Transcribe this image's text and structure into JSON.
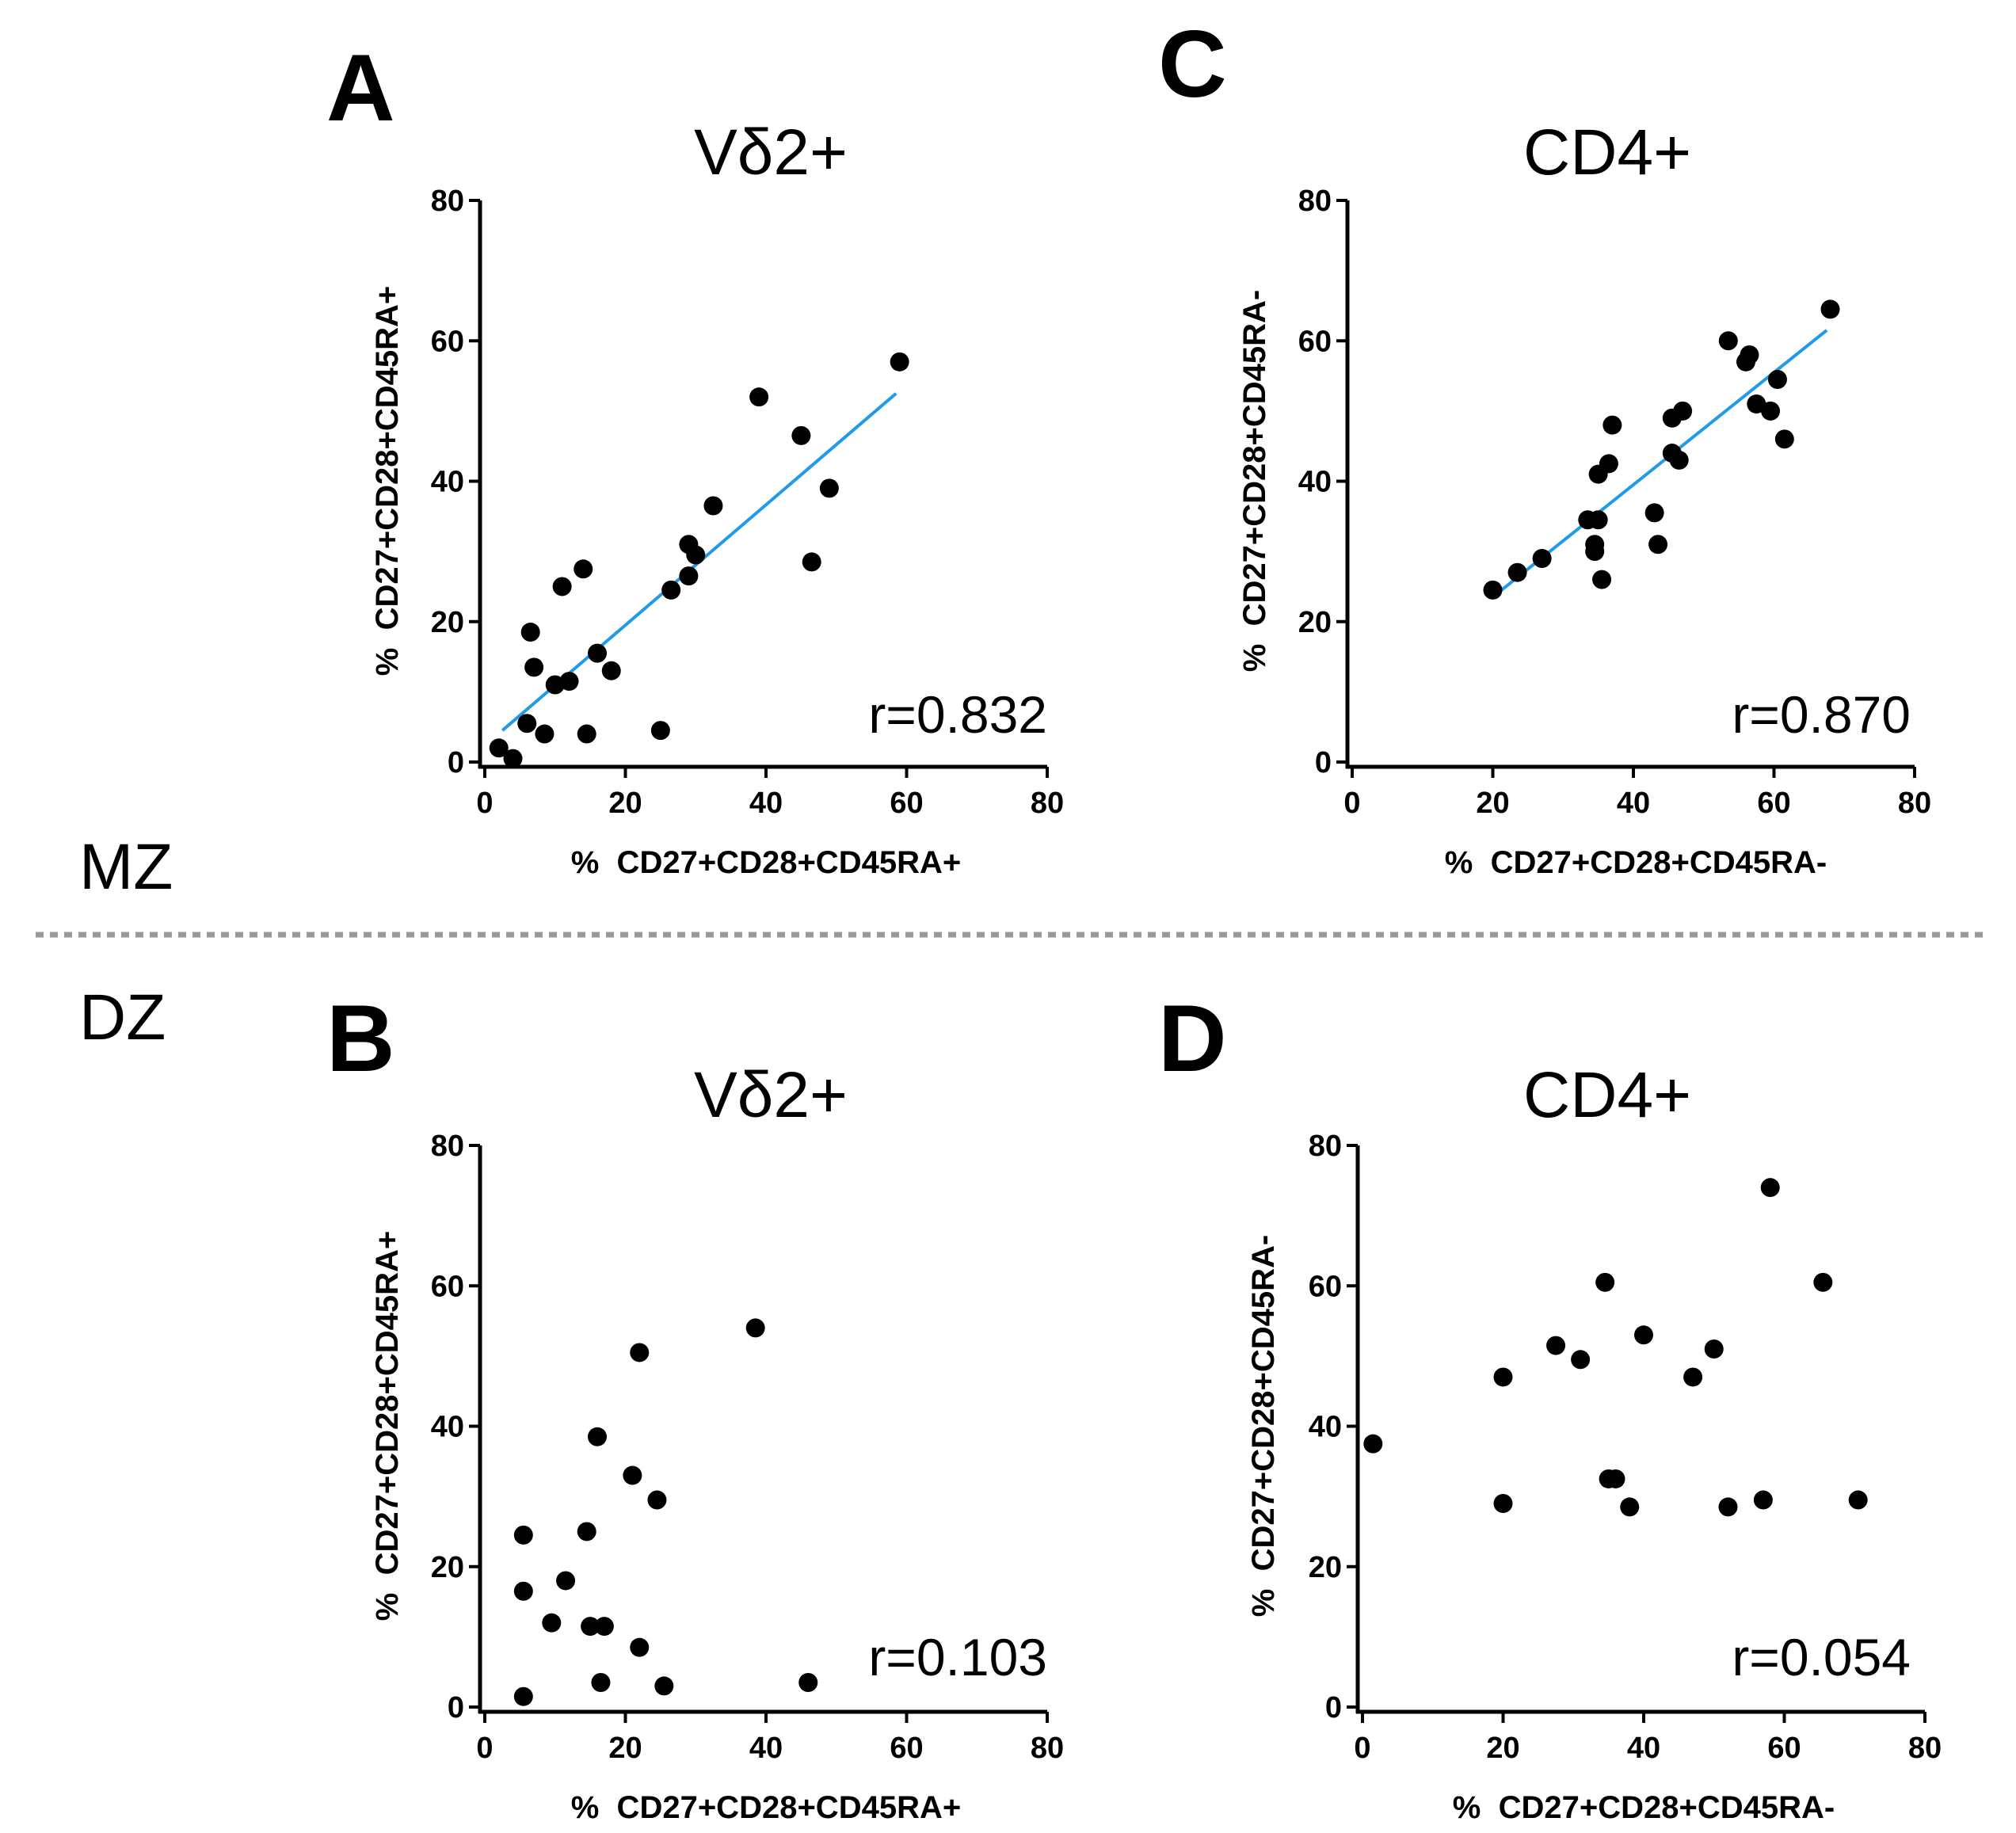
{
  "group_labels": {
    "top": "MZ",
    "bottom": "DZ"
  },
  "colors": {
    "fit_line": "#1f9be8",
    "points": "#000000",
    "divider": "#9a9a9a"
  },
  "panels": [
    {
      "id": "A",
      "letter": "A",
      "title": "Vδ2+",
      "r_text": "r=0.832",
      "xlabel": "%  CD27+CD28+CD45RA+",
      "ylabel": "%  CD27+CD28+CD45RA+",
      "xticks": [
        "0",
        "20",
        "40",
        "60",
        "80"
      ],
      "yticks": [
        "0",
        "20",
        "40",
        "60",
        "80"
      ]
    },
    {
      "id": "C",
      "letter": "C",
      "title": "CD4+",
      "r_text": "r=0.870",
      "xlabel": "%  CD27+CD28+CD45RA-",
      "ylabel": "%  CD27+CD28+CD45RA-",
      "xticks": [
        "0",
        "20",
        "40",
        "60",
        "80"
      ],
      "yticks": [
        "0",
        "20",
        "40",
        "60",
        "80"
      ]
    },
    {
      "id": "B",
      "letter": "B",
      "title": "Vδ2+",
      "r_text": "r=0.103",
      "xlabel": "%  CD27+CD28+CD45RA+",
      "ylabel": "%  CD27+CD28+CD45RA+",
      "xticks": [
        "0",
        "20",
        "40",
        "60",
        "80"
      ],
      "yticks": [
        "0",
        "20",
        "40",
        "60",
        "80"
      ]
    },
    {
      "id": "D",
      "letter": "D",
      "title": "CD4+",
      "r_text": "r=0.054",
      "xlabel": "%  CD27+CD28+CD45RA-",
      "ylabel": "%  CD27+CD28+CD45RA-",
      "xticks": [
        "0",
        "20",
        "40",
        "60",
        "80"
      ],
      "yticks": [
        "0",
        "20",
        "40",
        "60",
        "80"
      ]
    }
  ],
  "chart_data": [
    {
      "panel": "A",
      "group": "MZ",
      "type": "scatter",
      "title": "Vδ2+",
      "xlabel": "% CD27+CD28+CD45RA+",
      "ylabel": "% CD27+CD28+CD45RA+",
      "xlim": [
        0,
        80
      ],
      "ylim": [
        0,
        80
      ],
      "r": 0.832,
      "points": [
        [
          2,
          2
        ],
        [
          4,
          0.5
        ],
        [
          6,
          5.5
        ],
        [
          6.5,
          18.5
        ],
        [
          7,
          13.5
        ],
        [
          8.5,
          4
        ],
        [
          10,
          11
        ],
        [
          11,
          25
        ],
        [
          12,
          11.5
        ],
        [
          14,
          27.5
        ],
        [
          14.5,
          4
        ],
        [
          16,
          15.5
        ],
        [
          18,
          13
        ],
        [
          25,
          4.5
        ],
        [
          26.5,
          24.5
        ],
        [
          29,
          31
        ],
        [
          29,
          26.5
        ],
        [
          30,
          29.5
        ],
        [
          32.5,
          36.5
        ],
        [
          39,
          52
        ],
        [
          45,
          46.5
        ],
        [
          46.5,
          28.5
        ],
        [
          49,
          39
        ],
        [
          59,
          57
        ]
      ],
      "fit_line": {
        "x": [
          2.5,
          58.5
        ],
        "y": [
          4.5,
          52.5
        ]
      }
    },
    {
      "panel": "C",
      "group": "MZ",
      "type": "scatter",
      "title": "CD4+",
      "xlabel": "% CD27+CD28+CD45RA-",
      "ylabel": "% CD27+CD28+CD45RA-",
      "xlim": [
        0,
        80
      ],
      "ylim": [
        0,
        80
      ],
      "r": 0.87,
      "points": [
        [
          20,
          24.5
        ],
        [
          23.5,
          27
        ],
        [
          27,
          29
        ],
        [
          33.5,
          34.5
        ],
        [
          34.5,
          31
        ],
        [
          34.5,
          30
        ],
        [
          35,
          34.5
        ],
        [
          35,
          41
        ],
        [
          35.5,
          26
        ],
        [
          36.5,
          42.5
        ],
        [
          37,
          48
        ],
        [
          43,
          35.5
        ],
        [
          43.5,
          31
        ],
        [
          45.5,
          44
        ],
        [
          45.5,
          49
        ],
        [
          46.5,
          43
        ],
        [
          47,
          50
        ],
        [
          53.5,
          60
        ],
        [
          56,
          57
        ],
        [
          56.5,
          58
        ],
        [
          57.5,
          51
        ],
        [
          59.5,
          50
        ],
        [
          60.5,
          54.5
        ],
        [
          61.5,
          46
        ],
        [
          68,
          64.5
        ]
      ],
      "fit_line": {
        "x": [
          20,
          67.5
        ],
        "y": [
          23.5,
          61.5
        ]
      }
    },
    {
      "panel": "B",
      "group": "DZ",
      "type": "scatter",
      "title": "Vδ2+",
      "xlabel": "% CD27+CD28+CD45RA+",
      "ylabel": "% CD27+CD28+CD45RA+",
      "xlim": [
        0,
        80
      ],
      "ylim": [
        0,
        80
      ],
      "r": 0.103,
      "points": [
        [
          5.5,
          24.5
        ],
        [
          5.5,
          16.5
        ],
        [
          5.5,
          1.5
        ],
        [
          9.5,
          12
        ],
        [
          11.5,
          18
        ],
        [
          14.5,
          25
        ],
        [
          15,
          11.5
        ],
        [
          16,
          38.5
        ],
        [
          16.5,
          3.5
        ],
        [
          17,
          11.5
        ],
        [
          21,
          33
        ],
        [
          22,
          50.5
        ],
        [
          22,
          8.5
        ],
        [
          24.5,
          29.5
        ],
        [
          25.5,
          3
        ],
        [
          38.5,
          54
        ],
        [
          46,
          3.5
        ]
      ]
    },
    {
      "panel": "D",
      "group": "DZ",
      "type": "scatter",
      "title": "CD4+",
      "xlabel": "% CD27+CD28+CD45RA-",
      "ylabel": "% CD27+CD28+CD45RA-",
      "xlim": [
        0,
        80
      ],
      "ylim": [
        0,
        80
      ],
      "r": 0.054,
      "points": [
        [
          1.5,
          37.5
        ],
        [
          20,
          29
        ],
        [
          20,
          47
        ],
        [
          27.5,
          51.5
        ],
        [
          31,
          49.5
        ],
        [
          34.5,
          60.5
        ],
        [
          35,
          32.5
        ],
        [
          36,
          32.5
        ],
        [
          38,
          28.5
        ],
        [
          40,
          53
        ],
        [
          47,
          47
        ],
        [
          50,
          51
        ],
        [
          52,
          28.5
        ],
        [
          57,
          29.5
        ],
        [
          58,
          74
        ],
        [
          65.5,
          60.5
        ],
        [
          70.5,
          29.5
        ]
      ]
    }
  ]
}
